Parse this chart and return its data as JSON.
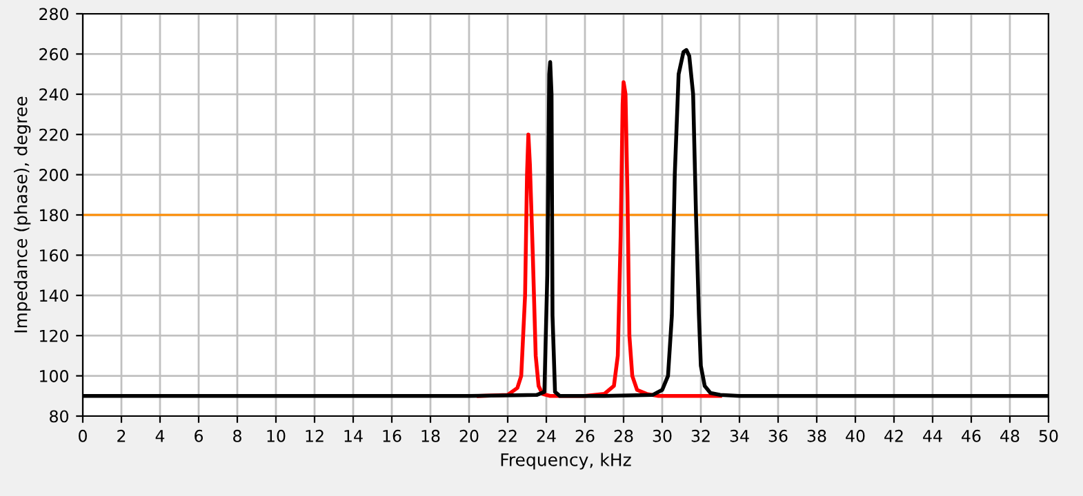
{
  "chart_data": {
    "type": "line",
    "xlabel": "Frequency, kHz",
    "ylabel": "Impedance (phase), degree",
    "xlim": [
      0,
      50
    ],
    "xticks": [
      0,
      2,
      4,
      6,
      8,
      10,
      12,
      14,
      16,
      18,
      20,
      22,
      24,
      26,
      28,
      30,
      32,
      34,
      36,
      38,
      40,
      42,
      44,
      46,
      48,
      50
    ],
    "ylim": [
      80,
      280
    ],
    "yticks": [
      80,
      100,
      120,
      140,
      160,
      180,
      200,
      220,
      240,
      260,
      280
    ],
    "grid": true,
    "line_style": "solid",
    "marker": "none",
    "ref_lines": [
      {
        "axis": "y",
        "value": 180,
        "color": "#ff8c00"
      }
    ],
    "series": [
      {
        "color": "#ff0000",
        "x": [
          20.5,
          22.0,
          22.5,
          22.7,
          22.9,
          23.0,
          23.07,
          23.15,
          23.3,
          23.45,
          23.6,
          23.8,
          24.2,
          26.0,
          27.0,
          27.5,
          27.7,
          27.85,
          27.95,
          28.0,
          28.1,
          28.2,
          28.3,
          28.45,
          28.7,
          29.2,
          29.8,
          33.0
        ],
        "values": [
          90,
          90.5,
          94,
          100,
          140,
          200,
          220,
          205,
          160,
          110,
          95,
          91,
          90,
          90,
          91,
          95,
          110,
          170,
          235,
          246,
          240,
          190,
          120,
          100,
          93,
          91,
          90,
          90
        ]
      },
      {
        "color": "#000000",
        "x": [
          0,
          20,
          23.5,
          23.9,
          24.05,
          24.15,
          24.2,
          24.27,
          24.32,
          24.45,
          24.7,
          27,
          29.5,
          30,
          30.3,
          30.5,
          30.65,
          30.85,
          31.1,
          31.25,
          31.4,
          31.6,
          31.75,
          31.9,
          32.0,
          32.2,
          32.5,
          33,
          34,
          50
        ],
        "values": [
          90,
          90,
          90.5,
          92,
          150,
          250,
          256,
          240,
          130,
          92,
          90,
          90,
          90.5,
          93,
          100,
          130,
          200,
          250,
          261,
          262,
          259,
          240,
          180,
          130,
          105,
          95,
          91.5,
          90.5,
          90,
          90
        ]
      }
    ]
  }
}
